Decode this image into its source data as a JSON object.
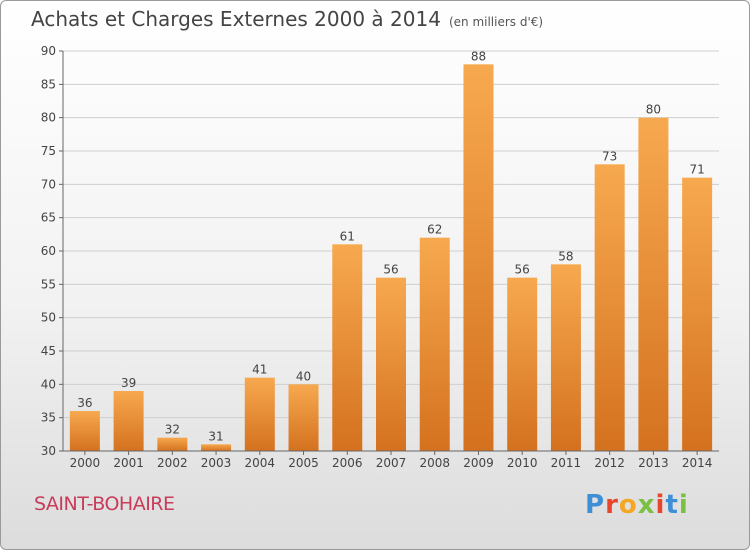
{
  "header": {
    "title": "Achats et Charges Externes 2000 à 2014",
    "unit": "(en milliers d'€)"
  },
  "footer": {
    "city": "SAINT-BOHAIRE",
    "logo_letters": [
      "P",
      "r",
      "o",
      "x",
      "i",
      "t",
      "i"
    ],
    "logo_colors": [
      "#3d8fd6",
      "#e8462c",
      "#f5a623",
      "#7ac143",
      "#e8462c",
      "#3d8fd6",
      "#7ac143"
    ]
  },
  "chart_data": {
    "type": "bar",
    "title": "Achats et Charges Externes 2000 à 2014",
    "categories": [
      "2000",
      "2001",
      "2002",
      "2003",
      "2004",
      "2005",
      "2006",
      "2007",
      "2008",
      "2009",
      "2010",
      "2011",
      "2012",
      "2013",
      "2014"
    ],
    "values": [
      36,
      39,
      32,
      31,
      41,
      40,
      61,
      56,
      62,
      88,
      56,
      58,
      73,
      80,
      71
    ],
    "ylim": [
      30,
      90
    ],
    "yticks": [
      30,
      35,
      40,
      45,
      50,
      55,
      60,
      65,
      70,
      75,
      80,
      85,
      90
    ],
    "grid": true,
    "bar_color_top": "#f7a94f",
    "bar_color_bottom": "#d4711f",
    "label_color": "#444444",
    "grid_color": "#cfcfcf"
  }
}
